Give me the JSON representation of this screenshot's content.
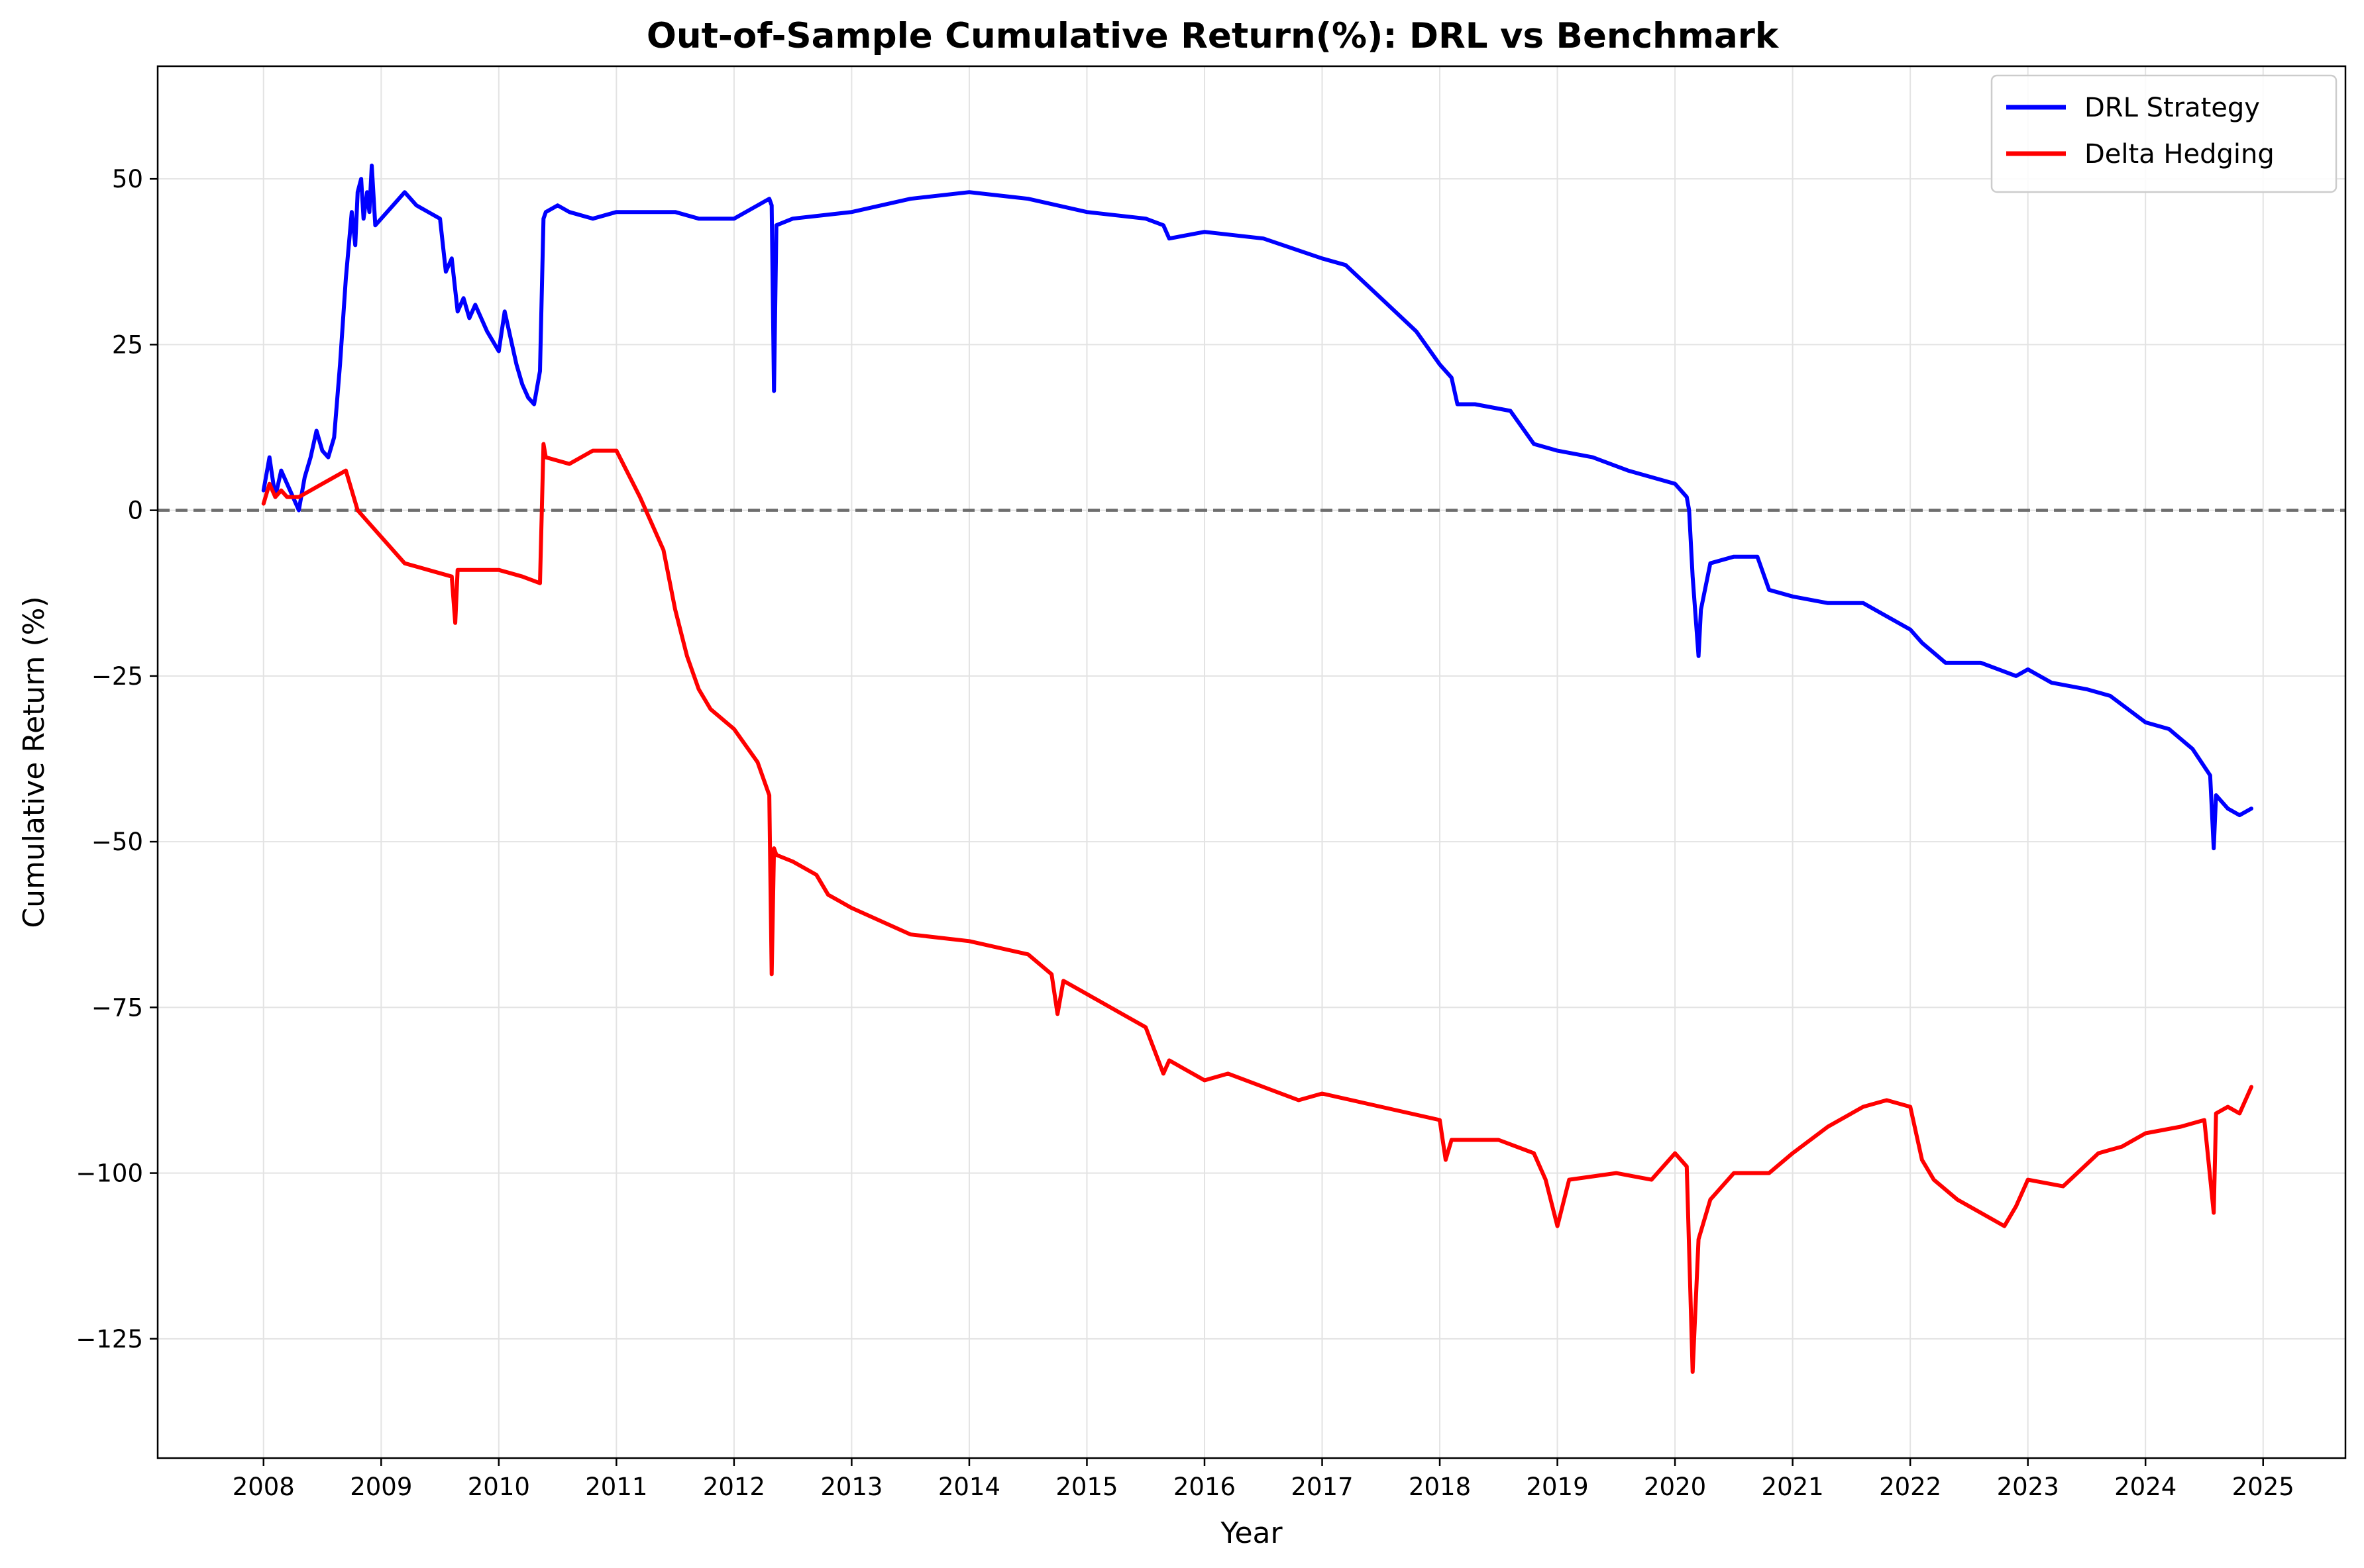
{
  "chart_data": {
    "type": "line",
    "title": "Out-of-Sample Cumulative Return(%): DRL vs Benchmark",
    "xlabel": "Year",
    "ylabel": "Cumulative Return (%)",
    "xlim": [
      2007.1,
      2025.7
    ],
    "ylim": [
      -143,
      67
    ],
    "x_ticks": [
      2008,
      2009,
      2010,
      2011,
      2012,
      2013,
      2014,
      2015,
      2016,
      2017,
      2018,
      2019,
      2020,
      2021,
      2022,
      2023,
      2024,
      2025
    ],
    "x_tick_labels": [
      "2008",
      "2009",
      "2010",
      "2011",
      "2012",
      "2013",
      "2014",
      "2015",
      "2016",
      "2017",
      "2018",
      "2019",
      "2020",
      "2021",
      "2022",
      "2023",
      "2024",
      "2025"
    ],
    "y_ticks": [
      50,
      25,
      0,
      -25,
      -50,
      -75,
      -100,
      -125
    ],
    "y_tick_labels": [
      "50",
      "25",
      "0",
      "−25",
      "−50",
      "−75",
      "−100",
      "−125"
    ],
    "grid": true,
    "legend_position": "top-right",
    "reference_line": {
      "y": 0,
      "style": "dashed",
      "color": "#6e6e6e"
    },
    "series": [
      {
        "name": "DRL Strategy",
        "color": "#0000ff",
        "x": [
          2008.0,
          2008.05,
          2008.1,
          2008.15,
          2008.2,
          2008.25,
          2008.3,
          2008.35,
          2008.4,
          2008.45,
          2008.5,
          2008.55,
          2008.6,
          2008.65,
          2008.7,
          2008.75,
          2008.78,
          2008.8,
          2008.83,
          2008.85,
          2008.88,
          2008.9,
          2008.92,
          2008.95,
          2009.0,
          2009.1,
          2009.2,
          2009.3,
          2009.4,
          2009.5,
          2009.55,
          2009.6,
          2009.65,
          2009.7,
          2009.75,
          2009.8,
          2009.9,
          2010.0,
          2010.05,
          2010.1,
          2010.15,
          2010.2,
          2010.25,
          2010.3,
          2010.35,
          2010.38,
          2010.4,
          2010.5,
          2010.6,
          2010.8,
          2011.0,
          2011.5,
          2011.7,
          2012.0,
          2012.2,
          2012.3,
          2012.32,
          2012.34,
          2012.36,
          2012.5,
          2013.0,
          2013.5,
          2014.0,
          2014.5,
          2015.0,
          2015.5,
          2015.65,
          2015.7,
          2016.0,
          2016.5,
          2017.0,
          2017.2,
          2017.5,
          2017.8,
          2018.0,
          2018.1,
          2018.15,
          2018.3,
          2018.6,
          2018.8,
          2019.0,
          2019.3,
          2019.6,
          2019.8,
          2020.0,
          2020.1,
          2020.12,
          2020.15,
          2020.2,
          2020.22,
          2020.3,
          2020.5,
          2020.7,
          2020.8,
          2021.0,
          2021.3,
          2021.6,
          2021.8,
          2022.0,
          2022.1,
          2022.3,
          2022.6,
          2022.9,
          2023.0,
          2023.2,
          2023.5,
          2023.7,
          2024.0,
          2024.2,
          2024.4,
          2024.55,
          2024.58,
          2024.6,
          2024.7,
          2024.8,
          2024.9
        ],
        "values": [
          3,
          8,
          2,
          6,
          4,
          2,
          0,
          5,
          8,
          12,
          9,
          8,
          11,
          22,
          35,
          45,
          40,
          48,
          50,
          44,
          48,
          45,
          52,
          43,
          44,
          46,
          48,
          46,
          45,
          44,
          36,
          38,
          30,
          32,
          29,
          31,
          27,
          24,
          30,
          26,
          22,
          19,
          17,
          16,
          21,
          44,
          45,
          46,
          45,
          44,
          45,
          45,
          44,
          44,
          46,
          47,
          46,
          18,
          43,
          44,
          45,
          47,
          48,
          47,
          45,
          44,
          43,
          41,
          42,
          41,
          38,
          37,
          32,
          27,
          22,
          20,
          16,
          16,
          15,
          10,
          9,
          8,
          6,
          5,
          4,
          2,
          0,
          -10,
          -22,
          -15,
          -8,
          -7,
          -7,
          -12,
          -13,
          -14,
          -14,
          -16,
          -18,
          -20,
          -23,
          -23,
          -25,
          -24,
          -26,
          -27,
          -28,
          -32,
          -33,
          -36,
          -40,
          -51,
          -43,
          -45,
          -46,
          -45
        ]
      },
      {
        "name": "Delta Hedging",
        "color": "#ff0000",
        "x": [
          2008.0,
          2008.05,
          2008.1,
          2008.15,
          2008.2,
          2008.3,
          2008.4,
          2008.5,
          2008.6,
          2008.7,
          2008.75,
          2008.8,
          2008.9,
          2009.0,
          2009.2,
          2009.4,
          2009.6,
          2009.63,
          2009.65,
          2009.8,
          2010.0,
          2010.2,
          2010.35,
          2010.38,
          2010.4,
          2010.6,
          2010.8,
          2011.0,
          2011.2,
          2011.4,
          2011.5,
          2011.6,
          2011.7,
          2011.8,
          2012.0,
          2012.2,
          2012.3,
          2012.32,
          2012.34,
          2012.36,
          2012.5,
          2012.7,
          2012.8,
          2013.0,
          2013.5,
          2014.0,
          2014.5,
          2014.7,
          2014.75,
          2014.8,
          2015.0,
          2015.5,
          2015.65,
          2015.7,
          2016.0,
          2016.2,
          2016.5,
          2016.8,
          2017.0,
          2017.5,
          2018.0,
          2018.05,
          2018.1,
          2018.2,
          2018.5,
          2018.8,
          2018.9,
          2019.0,
          2019.1,
          2019.5,
          2019.8,
          2020.0,
          2020.1,
          2020.15,
          2020.2,
          2020.3,
          2020.5,
          2020.8,
          2021.0,
          2021.3,
          2021.6,
          2021.8,
          2022.0,
          2022.1,
          2022.2,
          2022.4,
          2022.6,
          2022.8,
          2022.9,
          2023.0,
          2023.3,
          2023.6,
          2023.8,
          2024.0,
          2024.3,
          2024.5,
          2024.58,
          2024.6,
          2024.7,
          2024.8,
          2024.9
        ],
        "values": [
          1,
          4,
          2,
          3,
          2,
          2,
          3,
          4,
          5,
          6,
          3,
          0,
          -2,
          -4,
          -8,
          -9,
          -10,
          -17,
          -9,
          -9,
          -9,
          -10,
          -11,
          10,
          8,
          7,
          9,
          9,
          2,
          -6,
          -15,
          -22,
          -27,
          -30,
          -33,
          -38,
          -43,
          -70,
          -51,
          -52,
          -53,
          -55,
          -58,
          -60,
          -64,
          -65,
          -67,
          -70,
          -76,
          -71,
          -73,
          -78,
          -85,
          -83,
          -86,
          -85,
          -87,
          -89,
          -88,
          -90,
          -92,
          -98,
          -95,
          -95,
          -95,
          -97,
          -101,
          -108,
          -101,
          -100,
          -101,
          -97,
          -99,
          -130,
          -110,
          -104,
          -100,
          -100,
          -97,
          -93,
          -90,
          -89,
          -90,
          -98,
          -101,
          -104,
          -106,
          -108,
          -105,
          -101,
          -102,
          -97,
          -96,
          -94,
          -93,
          -92,
          -106,
          -91,
          -90,
          -91,
          -87
        ]
      }
    ]
  }
}
